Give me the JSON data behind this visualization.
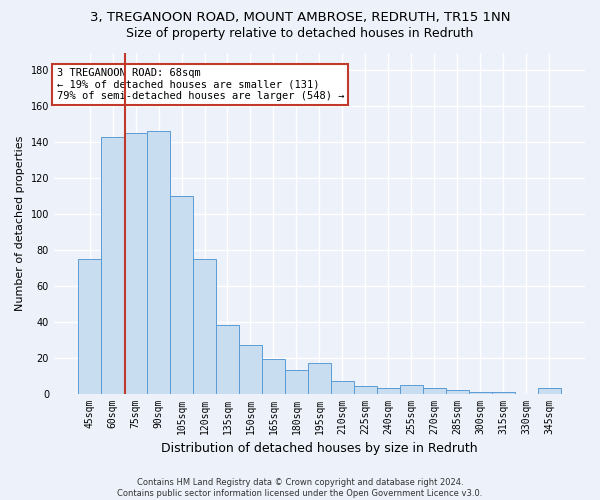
{
  "title1": "3, TREGANOON ROAD, MOUNT AMBROSE, REDRUTH, TR15 1NN",
  "title2": "Size of property relative to detached houses in Redruth",
  "xlabel": "Distribution of detached houses by size in Redruth",
  "ylabel": "Number of detached properties",
  "categories": [
    "45sqm",
    "60sqm",
    "75sqm",
    "90sqm",
    "105sqm",
    "120sqm",
    "135sqm",
    "150sqm",
    "165sqm",
    "180sqm",
    "195sqm",
    "210sqm",
    "225sqm",
    "240sqm",
    "255sqm",
    "270sqm",
    "285sqm",
    "300sqm",
    "315sqm",
    "330sqm",
    "345sqm"
  ],
  "values": [
    75,
    143,
    145,
    146,
    110,
    75,
    38,
    27,
    19,
    13,
    17,
    7,
    4,
    3,
    5,
    3,
    2,
    1,
    1,
    0,
    3
  ],
  "bar_color": "#c9ddf0",
  "bar_edge_color": "#5b9bd5",
  "vline_color": "#c0392b",
  "annotation_text": "3 TREGANOON ROAD: 68sqm\n← 19% of detached houses are smaller (131)\n79% of semi-detached houses are larger (548) →",
  "annotation_box_color": "white",
  "annotation_box_edge": "#c0392b",
  "ylim": [
    0,
    190
  ],
  "yticks": [
    0,
    20,
    40,
    60,
    80,
    100,
    120,
    140,
    160,
    180
  ],
  "footer": "Contains HM Land Registry data © Crown copyright and database right 2024.\nContains public sector information licensed under the Open Government Licence v3.0.",
  "bg_color": "#edf2fa",
  "grid_color": "white",
  "title1_fontsize": 9.5,
  "title2_fontsize": 9,
  "xlabel_fontsize": 9,
  "ylabel_fontsize": 8,
  "tick_fontsize": 7,
  "annotation_fontsize": 7.5,
  "footer_fontsize": 6
}
